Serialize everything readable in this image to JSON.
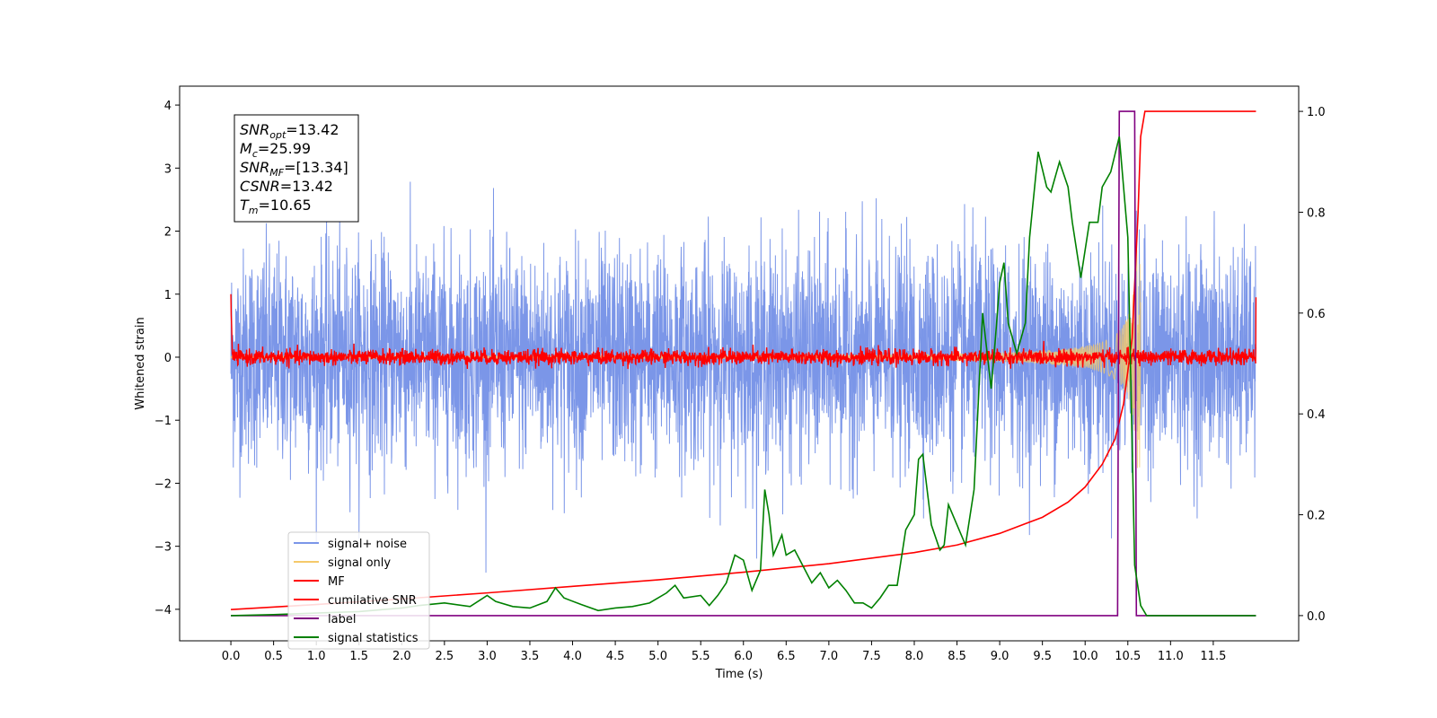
{
  "chart_data": {
    "type": "line",
    "xlabel": "Time (s)",
    "ylabel": "Whitened strain",
    "xlim": [
      -0.6,
      12.5
    ],
    "ylim": [
      -4.5,
      4.3
    ],
    "y2lim": [
      -0.05,
      1.05
    ],
    "x_ticks": [
      0.0,
      0.5,
      1.0,
      1.5,
      2.0,
      2.5,
      3.0,
      3.5,
      4.0,
      4.5,
      5.0,
      5.5,
      6.0,
      6.5,
      7.0,
      7.5,
      8.0,
      8.5,
      9.0,
      9.5,
      10.0,
      10.5,
      11.0,
      11.5
    ],
    "x_tick_labels": [
      "0.0",
      "0.5",
      "1.0",
      "1.5",
      "2.0",
      "2.5",
      "3.0",
      "3.5",
      "4.0",
      "4.5",
      "5.0",
      "5.5",
      "6.0",
      "6.5",
      "7.0",
      "7.5",
      "8.0",
      "8.5",
      "9.0",
      "9.5",
      "10.0",
      "10.5",
      "11.0",
      "11.5"
    ],
    "y_ticks": [
      -4,
      -3,
      -2,
      -1,
      0,
      1,
      2,
      3,
      4
    ],
    "y_tick_labels": [
      "−4",
      "−3",
      "−2",
      "−1",
      "0",
      "1",
      "2",
      "3",
      "4"
    ],
    "y2_ticks": [
      0.0,
      0.2,
      0.4,
      0.6,
      0.8,
      1.0
    ],
    "y2_tick_labels": [
      "0.0",
      "0.2",
      "0.4",
      "0.6",
      "0.8",
      "1.0"
    ],
    "legend_position": "lower-left",
    "annotation": {
      "lines": [
        {
          "base": "SNR",
          "sub": "opt",
          "text": "=13.42"
        },
        {
          "base": "M",
          "sub": "c",
          "text": "=25.99"
        },
        {
          "base": "SNR",
          "sub": "MF",
          "text": "=[13.34]"
        },
        {
          "base": "CSNR",
          "sub": "",
          "text": "=13.42"
        },
        {
          "base": "T",
          "sub": "m",
          "text": "=10.65"
        }
      ]
    },
    "series": [
      {
        "name": "signal+ noise",
        "color": "#7b96e8",
        "axis": "left",
        "kind": "noise",
        "x_range": [
          0.0,
          12.0
        ],
        "amplitude_std": 0.85,
        "peak_max": 3.9,
        "peak_min": -4.15
      },
      {
        "name": "signal only",
        "color": "#f5c96a",
        "axis": "left",
        "kind": "chirp",
        "x_range": [
          0.0,
          10.65
        ],
        "amplitude_at_merger": 2.0
      },
      {
        "name": "MF",
        "color": "#ff0000",
        "axis": "left",
        "kind": "noise",
        "x_range": [
          0.0,
          12.0
        ],
        "amplitude_std": 0.06,
        "start_value": 1.0,
        "end_value": 0.95
      },
      {
        "name": "cumilative SNR",
        "color": "#ff0000",
        "axis": "right",
        "x": [
          0.0,
          1.0,
          2.0,
          3.0,
          4.0,
          5.0,
          6.0,
          7.0,
          8.0,
          8.5,
          9.0,
          9.5,
          9.8,
          10.0,
          10.2,
          10.35,
          10.45,
          10.55,
          10.62,
          10.65,
          10.7,
          12.0
        ],
        "y": [
          0.012,
          0.022,
          0.033,
          0.045,
          0.058,
          0.071,
          0.086,
          0.103,
          0.125,
          0.14,
          0.163,
          0.195,
          0.225,
          0.255,
          0.3,
          0.35,
          0.42,
          0.55,
          0.8,
          0.95,
          1.0,
          1.0
        ]
      },
      {
        "name": "label",
        "color": "#800080",
        "axis": "right",
        "x": [
          0.0,
          10.38,
          10.4,
          10.58,
          10.6,
          10.7,
          10.72,
          12.0
        ],
        "y": [
          0.0,
          0.0,
          1.0,
          1.0,
          0.0,
          0.0,
          0.0,
          0.0
        ]
      },
      {
        "name": "signal statistics",
        "color": "#008000",
        "axis": "right",
        "x": [
          0.0,
          0.5,
          1.0,
          1.5,
          2.0,
          2.2,
          2.5,
          2.8,
          3.0,
          3.1,
          3.3,
          3.5,
          3.7,
          3.8,
          3.9,
          4.1,
          4.3,
          4.5,
          4.7,
          4.9,
          5.1,
          5.2,
          5.3,
          5.5,
          5.6,
          5.7,
          5.8,
          5.9,
          6.0,
          6.1,
          6.2,
          6.25,
          6.3,
          6.35,
          6.45,
          6.5,
          6.6,
          6.8,
          6.9,
          7.0,
          7.1,
          7.2,
          7.3,
          7.4,
          7.5,
          7.6,
          7.7,
          7.8,
          7.9,
          8.0,
          8.05,
          8.1,
          8.2,
          8.3,
          8.35,
          8.4,
          8.5,
          8.6,
          8.7,
          8.8,
          8.9,
          8.95,
          9.0,
          9.05,
          9.1,
          9.2,
          9.3,
          9.35,
          9.45,
          9.55,
          9.6,
          9.7,
          9.8,
          9.85,
          9.95,
          10.05,
          10.15,
          10.2,
          10.3,
          10.4,
          10.5,
          10.58,
          10.65,
          10.72,
          10.78,
          10.85,
          11.0,
          11.5,
          12.0
        ],
        "y": [
          0.0,
          0.002,
          0.005,
          0.008,
          0.015,
          0.02,
          0.025,
          0.018,
          0.04,
          0.028,
          0.018,
          0.015,
          0.028,
          0.055,
          0.035,
          0.022,
          0.01,
          0.015,
          0.018,
          0.025,
          0.045,
          0.06,
          0.035,
          0.04,
          0.02,
          0.04,
          0.065,
          0.12,
          0.11,
          0.05,
          0.09,
          0.25,
          0.2,
          0.12,
          0.16,
          0.12,
          0.13,
          0.065,
          0.085,
          0.055,
          0.07,
          0.05,
          0.025,
          0.025,
          0.015,
          0.035,
          0.06,
          0.06,
          0.17,
          0.2,
          0.31,
          0.32,
          0.18,
          0.13,
          0.14,
          0.22,
          0.18,
          0.14,
          0.25,
          0.6,
          0.45,
          0.55,
          0.66,
          0.7,
          0.58,
          0.52,
          0.58,
          0.75,
          0.92,
          0.85,
          0.84,
          0.9,
          0.85,
          0.78,
          0.67,
          0.78,
          0.78,
          0.85,
          0.88,
          0.95,
          0.75,
          0.1,
          0.02,
          0.0,
          0.0,
          0.0,
          0.0,
          0.0,
          0.0
        ]
      }
    ]
  }
}
